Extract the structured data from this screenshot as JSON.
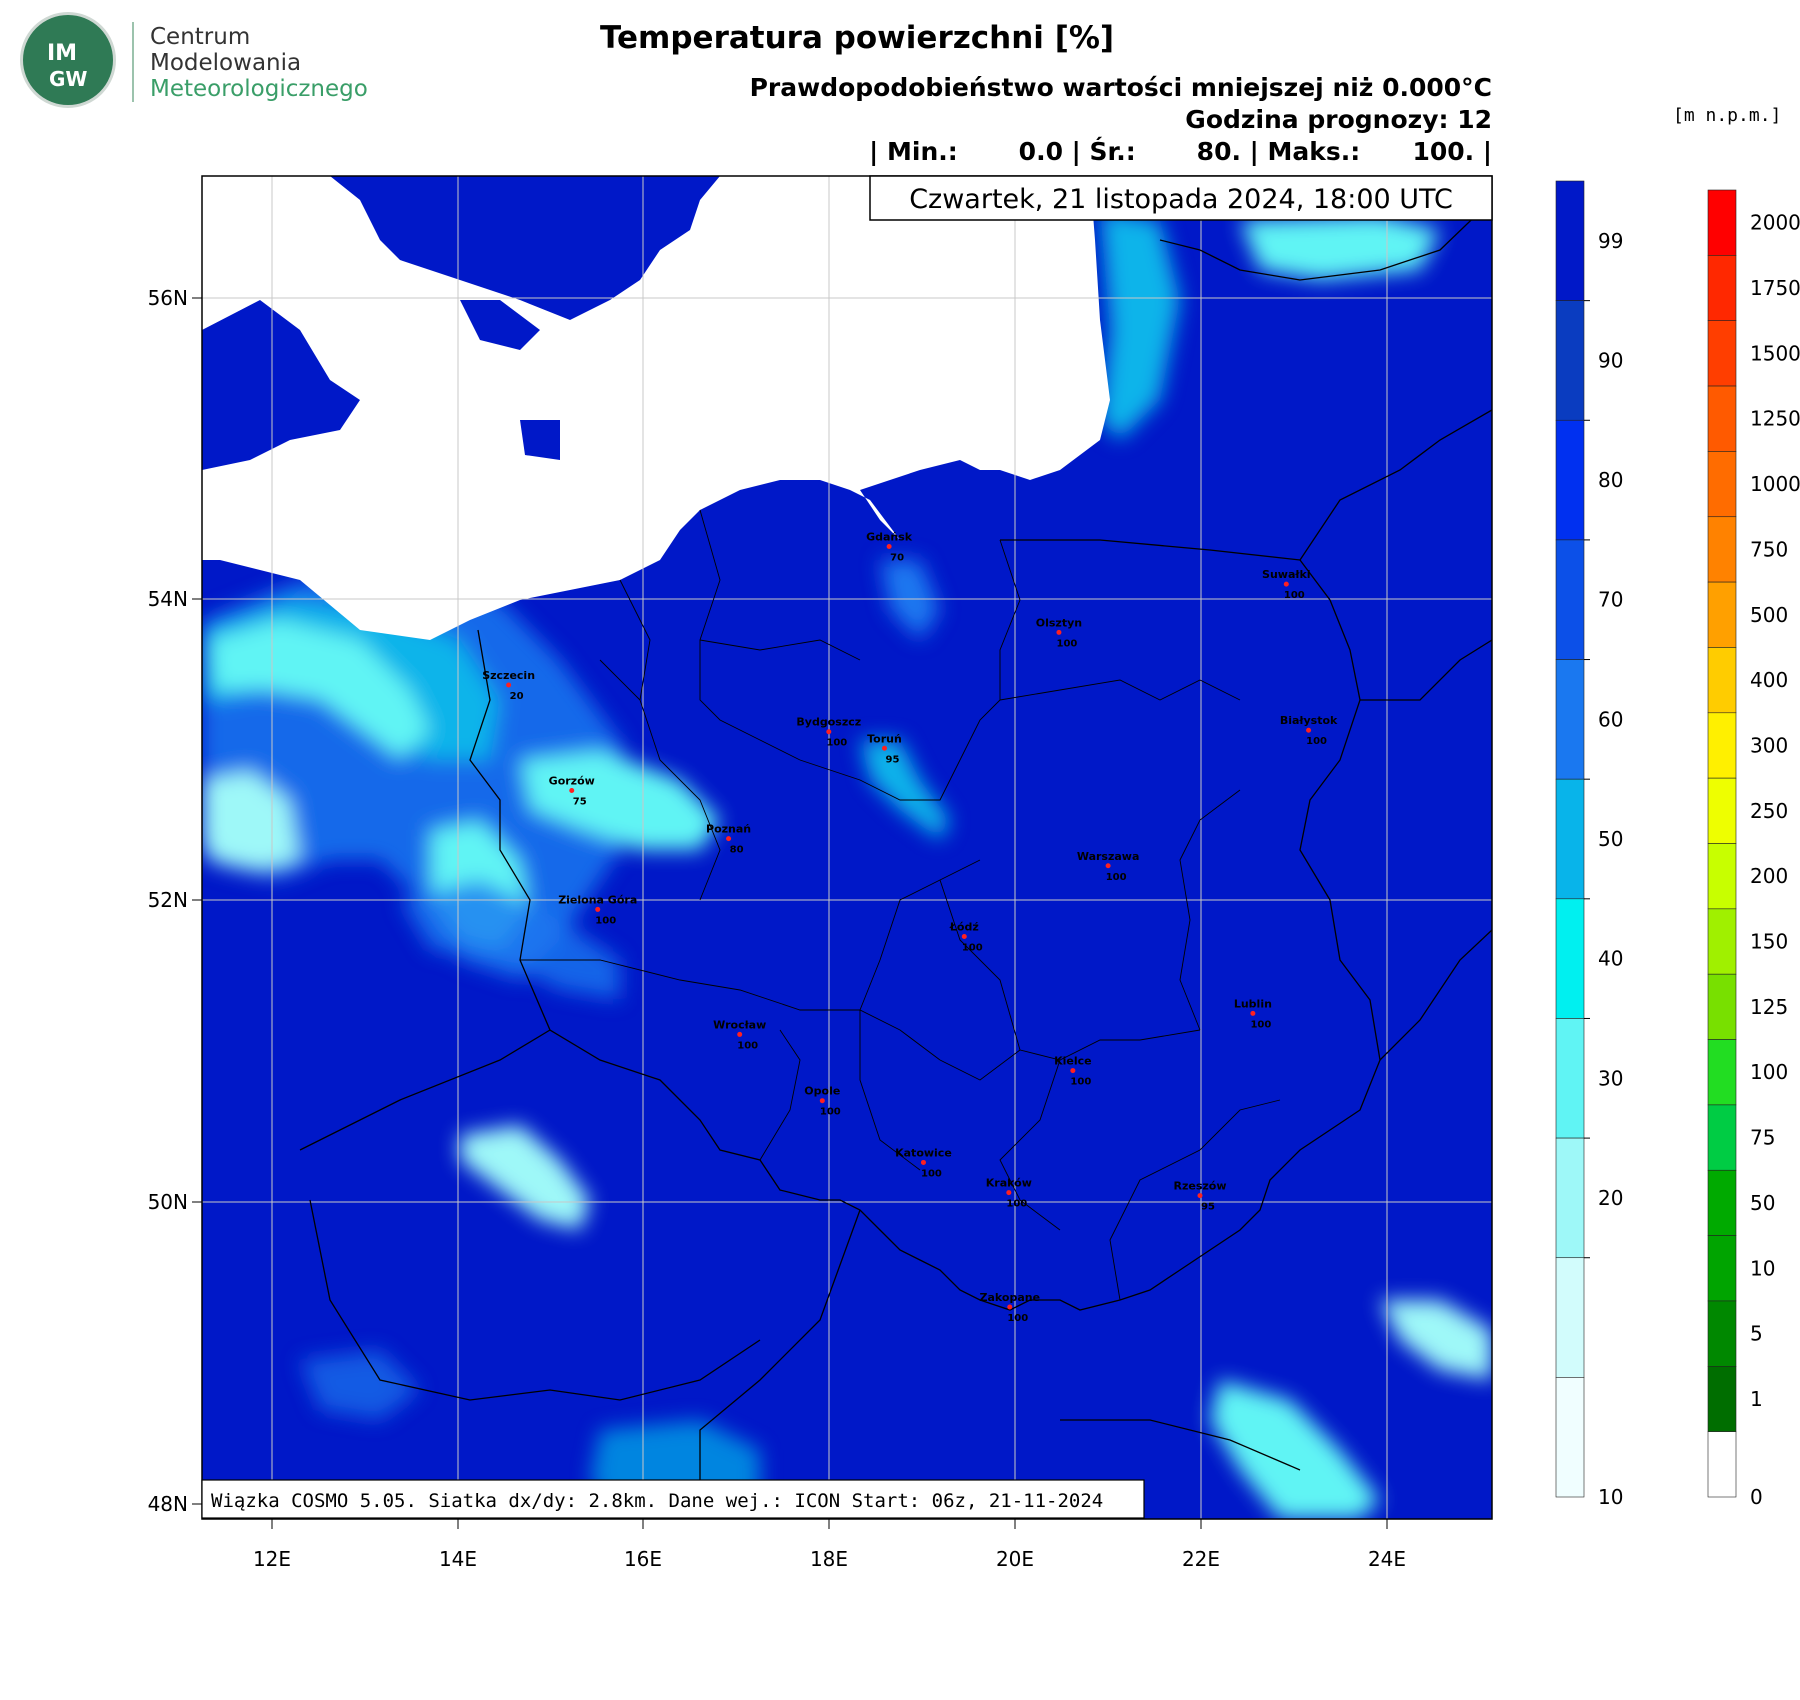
{
  "logo": {
    "badge_top": "IM",
    "badge_bottom": "GW",
    "line1": "Centrum",
    "line2": "Modelowania",
    "line3": "Meteorologicznego"
  },
  "title": "Temperatura powierzchni [%]",
  "subtitle": "Prawdopodobieństwo wartości mniejszej niż 0.000°C",
  "forecast_hour": "Godzina prognozy: 12",
  "stats": "| Min.:       0.0 | Śr.:       80. | Maks.:      100. |",
  "date": "Czwartek, 21 listopada 2024, 18:00 UTC",
  "footer": "Wiązka COSMO 5.05. Siatka dx/dy: 2.8km. Dane wej.: ICON Start: 06z, 21-11-2024",
  "lat_labels": [
    "56N",
    "54N",
    "52N",
    "50N",
    "48N"
  ],
  "lon_labels": [
    "12E",
    "14E",
    "16E",
    "18E",
    "20E",
    "22E",
    "24E"
  ],
  "height_unit": "[m n.p.m.]",
  "prob_legend": {
    "labels": [
      "99",
      "90",
      "80",
      "70",
      "60",
      "50",
      "40",
      "30",
      "20",
      "10"
    ],
    "colors": [
      "#0018c8",
      "#0a3cc0",
      "#0030f0",
      "#0c50e8",
      "#1a78f0",
      "#08b4ea",
      "#00f0f0",
      "#60f4f4",
      "#9ef8f8",
      "#d2fcfc",
      "#f0feff"
    ]
  },
  "height_legend": {
    "labels": [
      "2000",
      "1750",
      "1500",
      "1250",
      "1000",
      "750",
      "500",
      "400",
      "300",
      "250",
      "200",
      "150",
      "125",
      "100",
      "75",
      "50",
      "10",
      "5",
      "1",
      "0"
    ],
    "colors": [
      "#ff0000",
      "#ff2800",
      "#ff3e00",
      "#ff5a00",
      "#ff6c00",
      "#ff8200",
      "#ffa000",
      "#ffcc00",
      "#fff000",
      "#eeff00",
      "#c8ff00",
      "#a0f000",
      "#78e000",
      "#22dd22",
      "#00cc44",
      "#00aa00",
      "#00a400",
      "#008800",
      "#006e00",
      "#ffffff"
    ]
  },
  "cities": [
    {
      "name": "Gdańsk",
      "value": "70",
      "lon": 18.65,
      "lat": 54.35
    },
    {
      "name": "Suwałki",
      "value": "100",
      "lon": 22.93,
      "lat": 54.1
    },
    {
      "name": "Olsztyn",
      "value": "100",
      "lon": 20.48,
      "lat": 53.78
    },
    {
      "name": "Szczecin",
      "value": "20",
      "lon": 14.55,
      "lat": 53.43
    },
    {
      "name": "Białystok",
      "value": "100",
      "lon": 23.17,
      "lat": 53.13
    },
    {
      "name": "Bydgoszcz",
      "value": "100",
      "lon": 18.0,
      "lat": 53.12
    },
    {
      "name": "Toruń",
      "value": "95",
      "lon": 18.6,
      "lat": 53.01
    },
    {
      "name": "Gorzów",
      "value": "75",
      "lon": 15.23,
      "lat": 52.73
    },
    {
      "name": "Poznań",
      "value": "80",
      "lon": 16.92,
      "lat": 52.41
    },
    {
      "name": "Warszawa",
      "value": "100",
      "lon": 21.01,
      "lat": 52.23
    },
    {
      "name": "Zielona Góra",
      "value": "100",
      "lon": 15.51,
      "lat": 51.94
    },
    {
      "name": "Łódź",
      "value": "100",
      "lon": 19.46,
      "lat": 51.76
    },
    {
      "name": "Lublin",
      "value": "100",
      "lon": 22.57,
      "lat": 51.25
    },
    {
      "name": "Wrocław",
      "value": "100",
      "lon": 17.04,
      "lat": 51.11
    },
    {
      "name": "Kielce",
      "value": "100",
      "lon": 20.63,
      "lat": 50.87
    },
    {
      "name": "Opole",
      "value": "100",
      "lon": 17.93,
      "lat": 50.67
    },
    {
      "name": "Katowice",
      "value": "100",
      "lon": 19.02,
      "lat": 50.26
    },
    {
      "name": "Kraków",
      "value": "100",
      "lon": 19.94,
      "lat": 50.06
    },
    {
      "name": "Rzeszów",
      "value": "95",
      "lon": 22.0,
      "lat": 50.04
    },
    {
      "name": "Zakopane",
      "value": "100",
      "lon": 19.95,
      "lat": 49.3
    }
  ]
}
